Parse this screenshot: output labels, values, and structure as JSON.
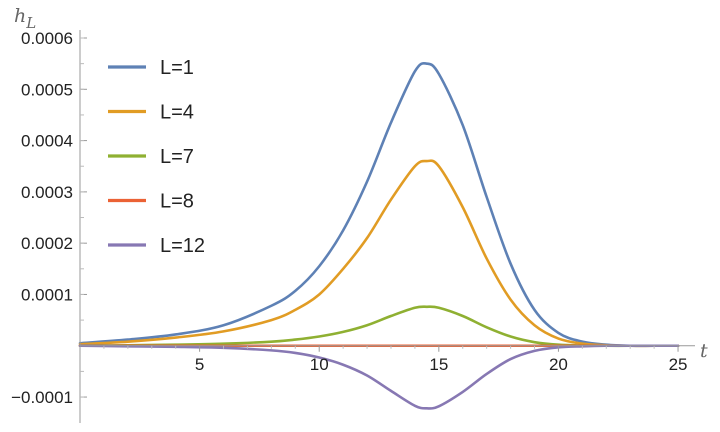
{
  "chart_data": {
    "type": "line",
    "ylabel": "h",
    "ylabel_sub": "L",
    "xlabel": "t",
    "xlim": [
      0,
      25.5
    ],
    "ylim": [
      -0.000135,
      0.0006
    ],
    "x_ticks": [
      5,
      10,
      15,
      20,
      25
    ],
    "x_tick_labels": [
      "5",
      "10",
      "15",
      "20",
      "25"
    ],
    "y_ticks": [
      -0.0001,
      0.0001,
      0.0002,
      0.0003,
      0.0004,
      0.0005,
      0.0006
    ],
    "y_tick_labels": [
      "−0.0001",
      "0.0001",
      "0.0002",
      "0.0003",
      "0.0004",
      "0.0005",
      "0.0006"
    ],
    "grid": false,
    "legend_position": "top-left",
    "series": [
      {
        "name": "L=1",
        "color": "#5E81B5",
        "x": [
          0,
          2,
          4,
          6,
          8,
          9,
          10,
          11,
          12,
          13,
          14,
          14.5,
          15,
          16,
          17,
          18,
          19,
          20,
          21,
          22,
          23,
          24,
          25
        ],
        "y": [
          5e-06,
          1.2e-05,
          2.2e-05,
          4e-05,
          7.8e-05,
          0.000107,
          0.000155,
          0.000225,
          0.00032,
          0.000435,
          0.000535,
          0.00055,
          0.00053,
          0.00043,
          0.00029,
          0.00016,
          7e-05,
          2.5e-05,
          8e-06,
          2e-06,
          0,
          0,
          0
        ]
      },
      {
        "name": "L=4",
        "color": "#E19C24",
        "x": [
          0,
          2,
          4,
          6,
          8,
          9,
          10,
          11,
          12,
          13,
          14,
          14.5,
          15,
          16,
          17,
          18,
          19,
          20,
          21,
          22,
          23,
          24,
          25
        ],
        "y": [
          3e-06,
          8e-06,
          1.6e-05,
          2.8e-05,
          5e-05,
          7e-05,
          0.0001,
          0.00015,
          0.00021,
          0.000285,
          0.00035,
          0.00036,
          0.00035,
          0.00027,
          0.00017,
          9e-05,
          4e-05,
          1.4e-05,
          4e-06,
          1e-06,
          0,
          0,
          0
        ]
      },
      {
        "name": "L=7",
        "color": "#8FB032",
        "x": [
          0,
          2,
          4,
          6,
          8,
          9,
          10,
          11,
          12,
          13,
          14,
          14.5,
          15,
          16,
          17,
          18,
          19,
          20,
          21,
          22,
          23,
          24,
          25
        ],
        "y": [
          0,
          1e-06,
          2e-06,
          4e-06,
          8e-06,
          1.2e-05,
          1.8e-05,
          2.7e-05,
          4e-05,
          5.8e-05,
          7.4e-05,
          7.6e-05,
          7.4e-05,
          5.8e-05,
          3.6e-05,
          1.8e-05,
          7e-06,
          2e-06,
          5e-07,
          0,
          0,
          0,
          0
        ]
      },
      {
        "name": "L=8",
        "color": "#EB6235",
        "x": [
          0,
          5,
          10,
          15,
          20,
          25
        ],
        "y": [
          0,
          0,
          0,
          0,
          0,
          0
        ]
      },
      {
        "name": "L=12",
        "color": "#8778B3",
        "x": [
          0,
          2,
          4,
          6,
          8,
          9,
          10,
          11,
          12,
          13,
          14,
          14.5,
          15,
          16,
          17,
          18,
          19,
          20,
          21,
          22,
          23,
          24,
          25
        ],
        "y": [
          0,
          -1e-06,
          -2e-06,
          -4e-06,
          -9e-06,
          -1.4e-05,
          -2.3e-05,
          -3.7e-05,
          -5.8e-05,
          -8.8e-05,
          -0.000117,
          -0.000122,
          -0.000118,
          -9e-05,
          -5.5e-05,
          -2.6e-05,
          -1e-05,
          -3e-06,
          -1e-06,
          0,
          0,
          0,
          0
        ]
      }
    ]
  }
}
